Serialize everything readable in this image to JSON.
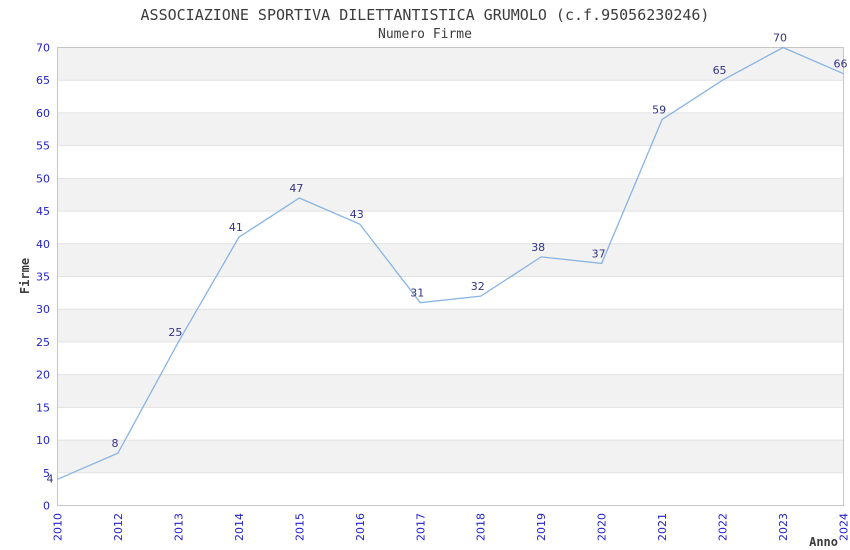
{
  "chart_data": {
    "type": "line",
    "title": "ASSOCIAZIONE SPORTIVA DILETTANTISTICA GRUMOLO (c.f.95056230246)",
    "subtitle": "Numero Firme",
    "xlabel": "Anno",
    "ylabel": "Firme",
    "categories": [
      "2010",
      "2012",
      "2013",
      "2014",
      "2015",
      "2016",
      "2017",
      "2018",
      "2019",
      "2020",
      "2021",
      "2022",
      "2023",
      "2024"
    ],
    "values": [
      4,
      8,
      25,
      41,
      47,
      43,
      31,
      32,
      38,
      37,
      59,
      65,
      70,
      66
    ],
    "data_labels_shown": true,
    "ylim": [
      0,
      70
    ],
    "ytick_step": 5,
    "yticks": [
      0,
      5,
      10,
      15,
      20,
      25,
      30,
      35,
      40,
      45,
      50,
      55,
      60,
      65,
      70
    ],
    "grid": "horizontal-bands-alternating",
    "legend": "none",
    "x_tick_rotation_degrees": 90,
    "colors": {
      "line": "#88b4e4",
      "tick_labels": "#2222cc",
      "data_labels": "#333388",
      "band": "#f2f2f2",
      "gridline": "#e2e2e2",
      "plot_border": "#c6c6c6",
      "title_text": "#3c3c3c",
      "background": "#ffffff"
    }
  }
}
